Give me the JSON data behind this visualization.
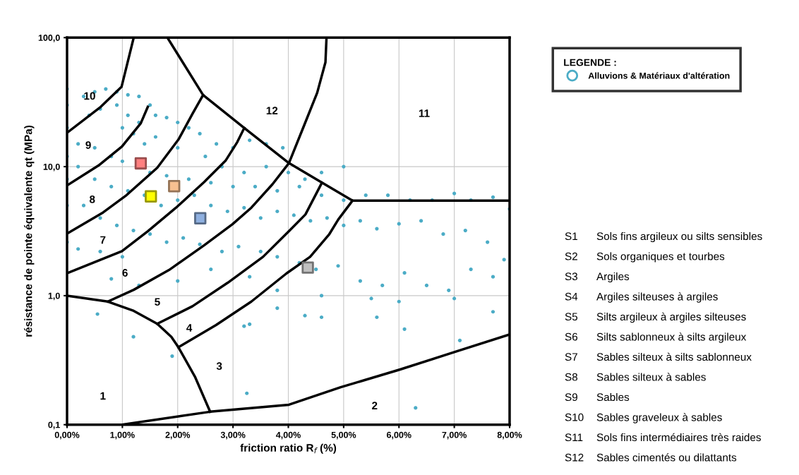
{
  "chart_data": {
    "type": "scatter",
    "xlabel": "friction ratio R$_{f}$ (%)",
    "ylabel": "résistance de pointe équivalente qt (MPa)",
    "legend_title": "LEGENDE :",
    "legend": "top right",
    "grid": true,
    "log": "y",
    "xlim": [
      0,
      8
    ],
    "ylim": [
      0.1,
      100
    ],
    "xticks": [
      {
        "value": 0,
        "label": "0,00%"
      },
      {
        "value": 1,
        "label": "1,00%"
      },
      {
        "value": 2,
        "label": "2,00%"
      },
      {
        "value": 3,
        "label": "3,00%"
      },
      {
        "value": 4,
        "label": "4,00%"
      },
      {
        "value": 5,
        "label": "5,00%"
      },
      {
        "value": 6,
        "label": "6,00%"
      },
      {
        "value": 7,
        "label": "7,00%"
      },
      {
        "value": 8,
        "label": "8,00%"
      }
    ],
    "yticks": [
      {
        "value": 0.1,
        "label": "0,1"
      },
      {
        "value": 1,
        "label": "1,0"
      },
      {
        "value": 10,
        "label": "10,0"
      },
      {
        "value": 100,
        "label": "100,0"
      }
    ],
    "series": [
      {
        "type": "line",
        "color": "#000000",
        "marker": "none",
        "x": [
          1.205,
          0.985,
          0.61,
          0
        ],
        "values": [
          100,
          41.5,
          29.1,
          18.3
        ]
      },
      {
        "type": "line",
        "color": "#000000",
        "marker": "none",
        "x": [
          0,
          0.568,
          0.992,
          1.333,
          1.46
        ],
        "values": [
          7.15,
          10.2,
          14.3,
          21.7,
          29.1
        ]
      },
      {
        "type": "line",
        "color": "#000000",
        "marker": "none",
        "x": [
          0,
          0.653,
          1.056,
          1.63,
          2.013,
          2.268,
          2.459
        ],
        "values": [
          3.03,
          4.42,
          5.92,
          9.79,
          16.2,
          25.7,
          35.9
        ]
      },
      {
        "type": "line",
        "color": "#000000",
        "marker": "none",
        "x": [
          1.814,
          2.459,
          3.204,
          4.011,
          5.16,
          8.0
        ],
        "values": [
          100,
          35.9,
          19.95,
          10.65,
          5.45,
          5.45
        ]
      },
      {
        "type": "line",
        "color": "#000000",
        "marker": "none",
        "x": [
          3.204,
          3.077,
          2.864,
          2.481,
          1.971,
          1.46,
          0.992,
          0
        ],
        "values": [
          19.95,
          15.5,
          11.1,
          7.62,
          4.81,
          3.16,
          2.21,
          1.49
        ]
      },
      {
        "type": "line",
        "color": "#000000",
        "marker": "none",
        "x": [
          0.737,
          1.205,
          1.843,
          2.481,
          2.991,
          3.332,
          3.714,
          4.011,
          4.267,
          4.522,
          4.671,
          4.69
        ],
        "values": [
          0.9,
          1.11,
          1.58,
          2.46,
          3.58,
          4.81,
          7.31,
          10.65,
          19.95,
          37.4,
          64.4,
          100
        ]
      },
      {
        "type": "line",
        "color": "#000000",
        "marker": "none",
        "x": [
          1.63,
          2.268,
          2.906,
          3.543,
          4.011,
          4.309,
          4.607
        ],
        "values": [
          0.605,
          0.828,
          1.26,
          2.0,
          3.16,
          4.26,
          7.5
        ]
      },
      {
        "type": "line",
        "color": "#000000",
        "marker": "none",
        "x": [
          2.013,
          2.694,
          3.332,
          3.969,
          4.394,
          4.735,
          4.904,
          5.16
        ],
        "values": [
          0.398,
          0.592,
          0.9,
          1.49,
          2.0,
          2.97,
          3.9,
          5.45
        ]
      },
      {
        "type": "line",
        "color": "#000000",
        "marker": "none",
        "x": [
          0,
          0.737,
          1.205,
          1.63,
          1.885,
          2.013,
          2.311,
          2.587
        ],
        "values": [
          1.0,
          0.9,
          0.762,
          0.605,
          0.48,
          0.398,
          0.236,
          0.126
        ]
      },
      {
        "type": "line",
        "color": "#000000",
        "marker": "none",
        "x": [
          0.992,
          2.587,
          4.011,
          4.946,
          6.01,
          7.009,
          8.0
        ],
        "values": [
          0.1,
          0.126,
          0.1427,
          0.195,
          0.267,
          0.366,
          0.5
        ]
      },
      {
        "name": "Alluvions & Matériaux d'altération",
        "color": "#4bacc6",
        "marker": "circle",
        "x": [
          0,
          0,
          0,
          0,
          0,
          0,
          0,
          0.3,
          0.5,
          0.7,
          0.9,
          1.1,
          1.3,
          1.5,
          1.6,
          1.8,
          2.0,
          2.2,
          2.4,
          2.7,
          3.0,
          3.3,
          3.6,
          3.9,
          0.4,
          0.6,
          0.9,
          1.1,
          1.3,
          1.0,
          1.2,
          1.4,
          1.6,
          2.0,
          2.5,
          2.8,
          3.2,
          3.6,
          4.0,
          4.3,
          4.6,
          5.0,
          0.2,
          0.5,
          0.8,
          1.0,
          1.5,
          1.8,
          2.2,
          2.6,
          3.0,
          3.4,
          3.8,
          4.2,
          4.6,
          5.0,
          5.4,
          5.8,
          6.2,
          6.6,
          7.0,
          7.3,
          7.7,
          0.2,
          0.5,
          0.8,
          1.1,
          1.4,
          1.7,
          2.0,
          2.3,
          2.6,
          2.9,
          3.2,
          3.5,
          3.8,
          4.1,
          4.4,
          4.7,
          5.0,
          5.3,
          5.6,
          6.0,
          6.4,
          6.8,
          7.2,
          7.6,
          8.0,
          0.3,
          0.6,
          0.9,
          1.2,
          1.5,
          1.8,
          2.1,
          2.4,
          2.8,
          3.1,
          3.5,
          3.8,
          4.2,
          4.5,
          4.9,
          5.3,
          5.7,
          6.1,
          6.5,
          6.9,
          7.3,
          7.7,
          7.9,
          0.2,
          0.6,
          1.0,
          0.8,
          1.3,
          2.0,
          2.6,
          3.3,
          3.8,
          4.6,
          5.5,
          6.0,
          7.0,
          7.7,
          0.55,
          1.2,
          1.9,
          3.2,
          3.3,
          4.6,
          3.25,
          6.3,
          6.1,
          7.1,
          5.6,
          4.3,
          3.8
        ],
        "values": [
          40,
          30,
          20,
          12,
          8,
          5,
          2.6,
          35,
          38,
          40,
          38,
          36,
          35,
          30,
          25,
          24,
          22,
          20,
          18,
          15,
          14,
          16,
          15,
          14,
          25,
          28,
          30,
          25,
          22,
          20,
          18,
          15,
          17,
          14,
          12,
          10,
          9,
          10,
          9,
          8,
          9,
          10,
          15,
          14,
          12,
          11,
          9,
          8.5,
          8,
          7.5,
          7,
          7,
          6.5,
          7,
          6,
          5.5,
          6,
          6,
          5.5,
          5.5,
          6.2,
          5.5,
          5.8,
          10,
          8,
          7,
          6.5,
          6,
          5,
          5.5,
          6,
          5,
          4.5,
          4.8,
          4,
          4.5,
          4.2,
          3.8,
          4,
          3.5,
          3.8,
          3.3,
          3.6,
          3.8,
          3,
          3.2,
          2.6,
          4.7,
          5,
          4,
          3.5,
          3.2,
          3,
          2.6,
          2.8,
          2.5,
          2.2,
          2.4,
          2.2,
          2.0,
          1.8,
          1.6,
          1.7,
          1.3,
          1.2,
          1.5,
          1.2,
          1.1,
          1.6,
          1.4,
          1.9,
          2.3,
          2.2,
          2.0,
          1.35,
          1.2,
          1.3,
          1.6,
          1.4,
          1.1,
          1.0,
          0.95,
          0.9,
          0.95,
          0.75,
          0.72,
          0.48,
          0.34,
          0.58,
          0.6,
          0.68,
          0.175,
          0.135,
          0.55,
          0.45,
          0.68,
          0.7,
          0.8
        ]
      },
      {
        "color": "#ff8080",
        "marker": "square",
        "x": [
          1.332
        ],
        "values": [
          10.6
        ]
      },
      {
        "color": "#f8c090",
        "marker": "square",
        "x": [
          1.936
        ],
        "values": [
          7.06
        ]
      },
      {
        "color": "#ffff00",
        "marker": "square",
        "x": [
          1.515
        ],
        "values": [
          5.88
        ]
      },
      {
        "color": "#8fb0e0",
        "marker": "square",
        "x": [
          2.408
        ],
        "values": [
          3.98
        ]
      },
      {
        "color": "#c0c0c0",
        "marker": "square",
        "x": [
          4.352
        ],
        "values": [
          1.65
        ]
      }
    ],
    "annotations": [
      "10",
      "9",
      "8",
      "7",
      "6",
      "5",
      "4",
      "3",
      "1",
      "2",
      "11",
      "12",
      "S1",
      "Sols fins argileux ou silts sensibles",
      "S2",
      "Sols organiques et tourbes",
      "S3",
      "Argiles",
      "S4",
      "Argiles silteuses à argiles",
      "S5",
      "Silts argileux à argiles silteuses",
      "S6",
      "Silts sablonneux à silts argileux",
      "S7",
      "Sables silteux à silts sablonneux",
      "S8",
      "Sables silteux à sables",
      "S9",
      "Sables",
      "S10",
      "Sables graveleux à sables",
      "S11",
      "Sols fins intermédiaires très raides",
      "S12",
      "Sables cimentés ou dilattants"
    ]
  }
}
